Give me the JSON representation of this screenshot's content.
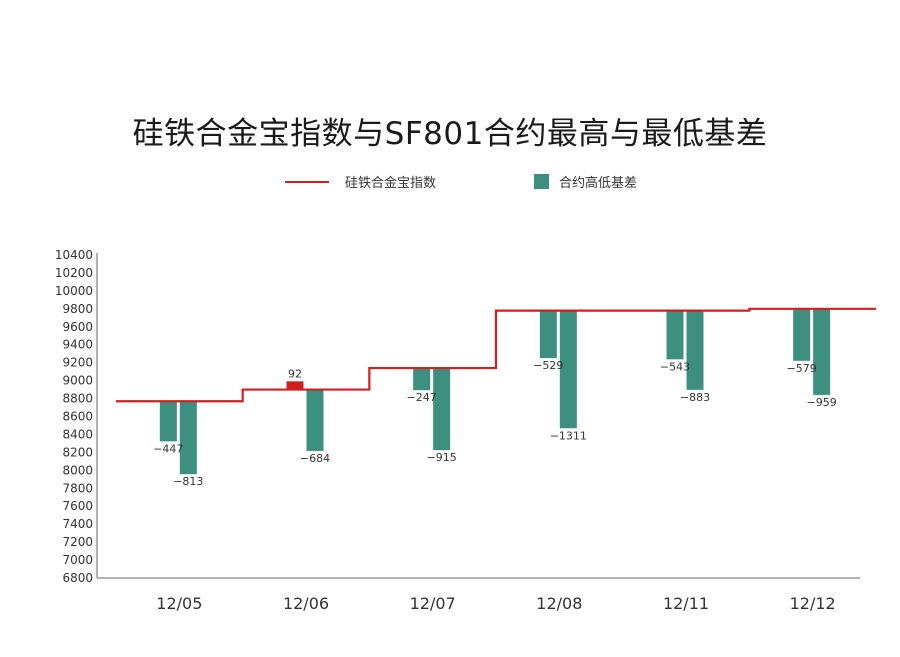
{
  "chart_data": {
    "type": "bar",
    "title": "硅铁合金宝指数与SF801合约最高与最低基差",
    "categories": [
      "12/05",
      "12/06",
      "12/07",
      "12/08",
      "12/11",
      "12/12"
    ],
    "ylim": [
      6800,
      10400
    ],
    "yticks": [
      6800,
      7000,
      7200,
      7400,
      7600,
      7800,
      8000,
      8200,
      8400,
      8600,
      8800,
      9000,
      9200,
      9400,
      9600,
      9800,
      10000,
      10200,
      10400
    ],
    "index_series": {
      "name": "硅铁合金宝指数",
      "values": [
        8770,
        8900,
        9140,
        9780,
        9780,
        9800
      ],
      "color": "#d21f1f"
    },
    "basis_series": {
      "name": "合约高低基差",
      "color_negative": "#3d8f7f",
      "color_positive": "#d21f1f",
      "high_basis": [
        -447,
        92,
        -247,
        -529,
        -543,
        -579
      ],
      "low_basis": [
        -813,
        -684,
        -915,
        -1311,
        -883,
        -959
      ],
      "high_labels": [
        "−447",
        "92",
        "−247",
        "−529",
        "−543",
        "−579"
      ],
      "low_labels": [
        "−813",
        "−684",
        "−915",
        "−1311",
        "−883",
        "−959"
      ]
    },
    "grid": false,
    "legend_position": "top"
  }
}
